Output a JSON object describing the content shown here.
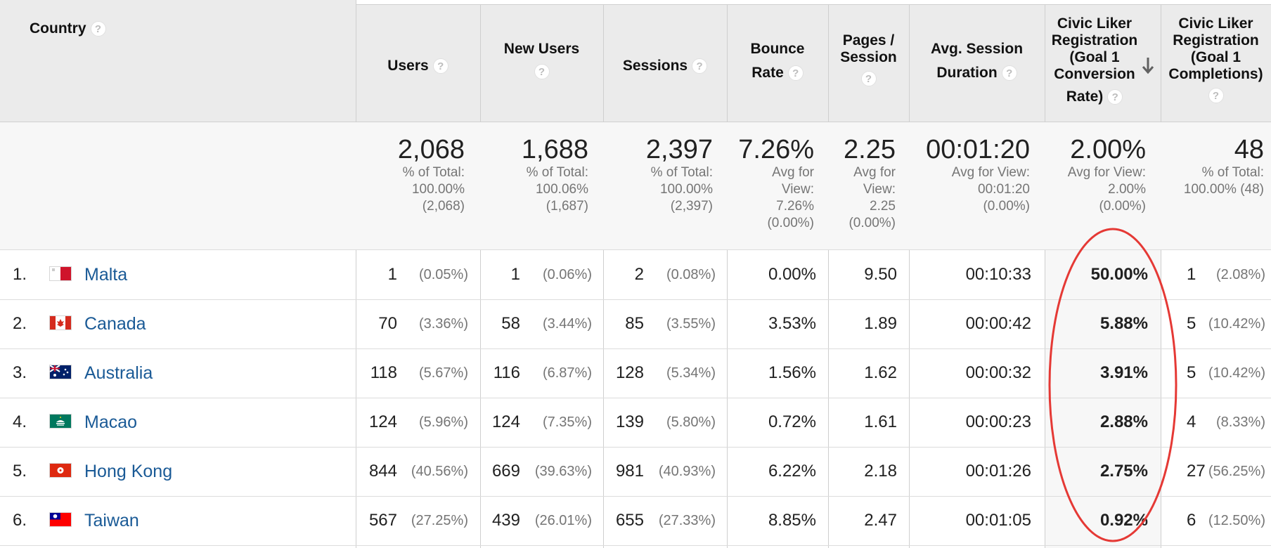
{
  "headers": {
    "country": "Country",
    "users": "Users",
    "new_users": "New Users",
    "sessions": "Sessions",
    "bounce_1": "Bounce",
    "bounce_2": "Rate",
    "pages_1": "Pages /",
    "pages_2": "Session",
    "duration_1": "Avg. Session",
    "duration_2": "Duration",
    "conv_1": "Civic Liker",
    "conv_2": "Registration",
    "conv_3": "(Goal 1",
    "conv_4": "Conversion",
    "conv_5": "Rate)",
    "comp_1": "Civic Liker",
    "comp_2": "Registration",
    "comp_3": "(Goal 1",
    "comp_4": "Completions)",
    "help": "?"
  },
  "totals": {
    "users": {
      "big": "2,068",
      "l1": "% of Total:",
      "l2": "100.00%",
      "l3": "(2,068)"
    },
    "new_users": {
      "big": "1,688",
      "l1": "% of Total:",
      "l2": "100.06%",
      "l3": "(1,687)"
    },
    "sessions": {
      "big": "2,397",
      "l1": "% of Total:",
      "l2": "100.00%",
      "l3": "(2,397)"
    },
    "bounce": {
      "big": "7.26%",
      "l1": "Avg for",
      "l2": "View:",
      "l3": "7.26%",
      "l4": "(0.00%)"
    },
    "pages": {
      "big": "2.25",
      "l1": "Avg for",
      "l2": "View:",
      "l3": "2.25",
      "l4": "(0.00%)"
    },
    "duration": {
      "big": "00:01:20",
      "l1": "Avg for View:",
      "l2": "00:01:20",
      "l3": "(0.00%)"
    },
    "conv": {
      "big": "2.00%",
      "l1": "Avg for View:",
      "l2": "2.00%",
      "l3": "(0.00%)"
    },
    "comp": {
      "big": "48",
      "l1": "% of Total:",
      "l2": "100.00% (48)"
    }
  },
  "rows": [
    {
      "num": "1.",
      "country": "Malta",
      "users": "1",
      "users_pct": "(0.05%)",
      "new_users": "1",
      "new_users_pct": "(0.06%)",
      "sessions": "2",
      "sessions_pct": "(0.08%)",
      "bounce": "0.00%",
      "pages": "9.50",
      "duration": "00:10:33",
      "conv": "50.00%",
      "comp": "1",
      "comp_pct": "(2.08%)"
    },
    {
      "num": "2.",
      "country": "Canada",
      "users": "70",
      "users_pct": "(3.36%)",
      "new_users": "58",
      "new_users_pct": "(3.44%)",
      "sessions": "85",
      "sessions_pct": "(3.55%)",
      "bounce": "3.53%",
      "pages": "1.89",
      "duration": "00:00:42",
      "conv": "5.88%",
      "comp": "5",
      "comp_pct": "(10.42%)"
    },
    {
      "num": "3.",
      "country": "Australia",
      "users": "118",
      "users_pct": "(5.67%)",
      "new_users": "116",
      "new_users_pct": "(6.87%)",
      "sessions": "128",
      "sessions_pct": "(5.34%)",
      "bounce": "1.56%",
      "pages": "1.62",
      "duration": "00:00:32",
      "conv": "3.91%",
      "comp": "5",
      "comp_pct": "(10.42%)"
    },
    {
      "num": "4.",
      "country": "Macao",
      "users": "124",
      "users_pct": "(5.96%)",
      "new_users": "124",
      "new_users_pct": "(7.35%)",
      "sessions": "139",
      "sessions_pct": "(5.80%)",
      "bounce": "0.72%",
      "pages": "1.61",
      "duration": "00:00:23",
      "conv": "2.88%",
      "comp": "4",
      "comp_pct": "(8.33%)"
    },
    {
      "num": "5.",
      "country": "Hong Kong",
      "users": "844",
      "users_pct": "(40.56%)",
      "new_users": "669",
      "new_users_pct": "(39.63%)",
      "sessions": "981",
      "sessions_pct": "(40.93%)",
      "bounce": "6.22%",
      "pages": "2.18",
      "duration": "00:01:26",
      "conv": "2.75%",
      "comp": "27",
      "comp_pct": "(56.25%)"
    },
    {
      "num": "6.",
      "country": "Taiwan",
      "users": "567",
      "users_pct": "(27.25%)",
      "new_users": "439",
      "new_users_pct": "(26.01%)",
      "sessions": "655",
      "sessions_pct": "(27.33%)",
      "bounce": "8.85%",
      "pages": "2.47",
      "duration": "00:01:05",
      "conv": "0.92%",
      "comp": "6",
      "comp_pct": "(12.50%)"
    }
  ],
  "colors": {
    "link": "#1a5a96",
    "highlight_circle": "#e53935",
    "header_bg": "#ebebeb"
  },
  "icons": {
    "help": "question-circle-icon",
    "sort": "arrow-down-icon",
    "annotation": "red-ellipse-annotation"
  }
}
